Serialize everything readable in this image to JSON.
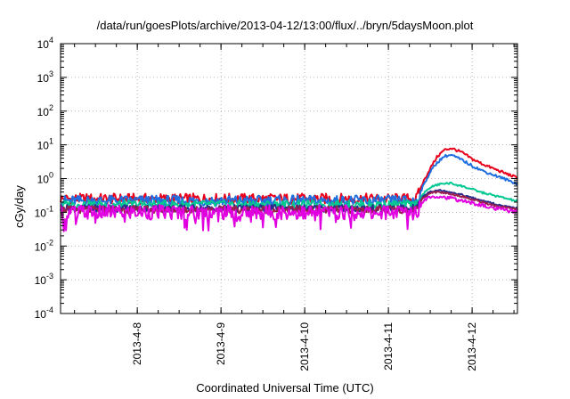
{
  "chart_data": {
    "type": "line",
    "title": "/data/run/goesPlots/archive/2013-04-12/13:00/flux/../bryn/5daysMoon.plot",
    "xlabel": "Coordinated Universal Time (UTC)",
    "ylabel": "cGy/day",
    "yscale": "log",
    "ylim": [
      0.0001,
      10000
    ],
    "xlim": [
      "2013-04-07T02:00",
      "2013-04-12T13:00"
    ],
    "grid": true,
    "y_ticks": [
      {
        "base": "10",
        "exp": "-4",
        "value": 0.0001
      },
      {
        "base": "10",
        "exp": "-3",
        "value": 0.001
      },
      {
        "base": "10",
        "exp": "-2",
        "value": 0.01
      },
      {
        "base": "10",
        "exp": "-1",
        "value": 0.1
      },
      {
        "base": "10",
        "exp": "0",
        "value": 1
      },
      {
        "base": "10",
        "exp": "1",
        "value": 10
      },
      {
        "base": "10",
        "exp": "2",
        "value": 100
      },
      {
        "base": "10",
        "exp": "3",
        "value": 1000
      },
      {
        "base": "10",
        "exp": "4",
        "value": 10000
      }
    ],
    "x_ticks": [
      {
        "label": "2013-4-8",
        "value": "2013-04-08T00:00"
      },
      {
        "label": "2013-4-9",
        "value": "2013-04-09T00:00"
      },
      {
        "label": "2013-4-10",
        "value": "2013-04-10T00:00"
      },
      {
        "label": "2013-4-11",
        "value": "2013-04-11T00:00"
      },
      {
        "label": "2013-4-12",
        "value": "2013-04-12T00:00"
      }
    ],
    "x": [
      "2013-04-07T02:00",
      "2013-04-08T00:00",
      "2013-04-09T00:00",
      "2013-04-10T00:00",
      "2013-04-11T00:00",
      "2013-04-11T08:00",
      "2013-04-11T10:00",
      "2013-04-11T12:00",
      "2013-04-11T14:00",
      "2013-04-11T16:00",
      "2013-04-11T18:00",
      "2013-04-11T21:00",
      "2013-04-12T00:00",
      "2013-04-12T03:00",
      "2013-04-12T06:00",
      "2013-04-12T09:00",
      "2013-04-12T13:00"
    ],
    "series": [
      {
        "color": "#e8001c",
        "noise": 0.32,
        "values": [
          0.25,
          0.25,
          0.25,
          0.25,
          0.25,
          0.25,
          0.8,
          2.0,
          4.5,
          7.0,
          8.0,
          6.0,
          3.8,
          2.7,
          2.0,
          1.5,
          1.05
        ]
      },
      {
        "color": "#1f6fe0",
        "noise": 0.32,
        "values": [
          0.22,
          0.22,
          0.22,
          0.22,
          0.22,
          0.22,
          0.6,
          1.6,
          3.0,
          4.6,
          5.0,
          3.6,
          2.4,
          1.7,
          1.3,
          1.0,
          0.7
        ]
      },
      {
        "color": "#00c890",
        "noise": 0.25,
        "values": [
          0.17,
          0.17,
          0.17,
          0.17,
          0.17,
          0.17,
          0.35,
          0.55,
          0.65,
          0.72,
          0.72,
          0.6,
          0.48,
          0.38,
          0.32,
          0.27,
          0.21
        ]
      },
      {
        "color": "#2a2a8c",
        "noise": 0.22,
        "values": [
          0.13,
          0.13,
          0.13,
          0.13,
          0.13,
          0.13,
          0.3,
          0.42,
          0.45,
          0.43,
          0.4,
          0.33,
          0.27,
          0.22,
          0.18,
          0.15,
          0.13
        ]
      },
      {
        "color": "#9a1f4c",
        "noise": 0.22,
        "values": [
          0.12,
          0.12,
          0.12,
          0.12,
          0.12,
          0.12,
          0.27,
          0.38,
          0.4,
          0.38,
          0.35,
          0.3,
          0.24,
          0.2,
          0.16,
          0.14,
          0.12
        ]
      },
      {
        "color": "#e000e0",
        "noise": 0.45,
        "values": [
          0.1,
          0.1,
          0.1,
          0.1,
          0.1,
          0.1,
          0.22,
          0.3,
          0.3,
          0.28,
          0.26,
          0.22,
          0.19,
          0.16,
          0.13,
          0.12,
          0.1
        ]
      }
    ]
  }
}
